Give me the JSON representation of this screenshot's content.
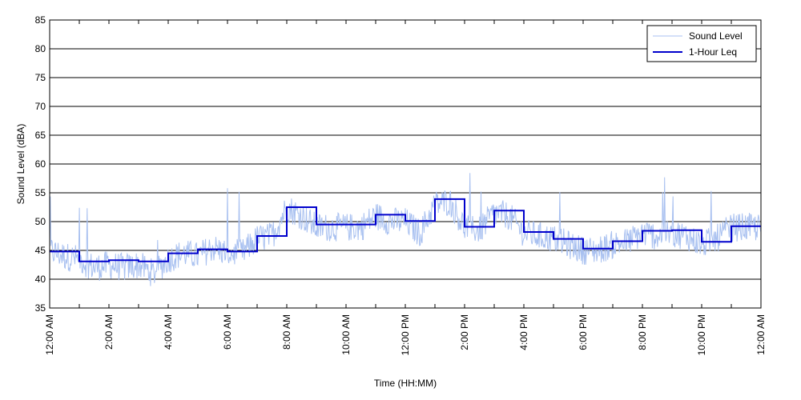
{
  "chart_data": {
    "type": "line",
    "title": "",
    "xlabel": "Time (HH:MM)",
    "ylabel": "Sound Level (dBA)",
    "ylim": [
      35,
      85
    ],
    "yticks": [
      35,
      40,
      45,
      50,
      55,
      60,
      65,
      70,
      75,
      80,
      85
    ],
    "xlim_hours": [
      0,
      24
    ],
    "x_tick_labels": [
      "12:00 AM",
      "2:00 AM",
      "4:00 AM",
      "6:00 AM",
      "8:00 AM",
      "10:00 AM",
      "12:00 PM",
      "2:00 PM",
      "4:00 PM",
      "6:00 PM",
      "8:00 PM",
      "10:00 PM",
      "12:00 AM"
    ],
    "x_tick_hours": [
      0,
      2,
      4,
      6,
      8,
      10,
      12,
      14,
      16,
      18,
      20,
      22,
      24
    ],
    "grid": "horizontal",
    "legend_position": "top-right",
    "series": [
      {
        "name": "Sound Level",
        "style": "thin-light-blue",
        "color": "#a8c0f0",
        "x_hours": [
          0,
          0.5,
          1,
          1.5,
          2,
          2.5,
          3,
          3.5,
          4,
          4.5,
          5,
          5.5,
          6,
          6.5,
          7,
          7.5,
          8,
          8.5,
          9,
          9.5,
          10,
          10.5,
          11,
          11.5,
          12,
          12.5,
          13,
          13.5,
          14,
          14.5,
          15,
          15.5,
          16,
          16.5,
          17,
          17.5,
          18,
          18.5,
          19,
          19.5,
          20,
          20.5,
          21,
          21.5,
          22,
          22.5,
          23,
          23.5,
          24
        ],
        "values": [
          45,
          44,
          43.5,
          42,
          42.5,
          42,
          42.5,
          41,
          43.5,
          44.5,
          44,
          45.5,
          44.5,
          44.5,
          47,
          47.5,
          52.5,
          51,
          49,
          49,
          49,
          49,
          51,
          50,
          50,
          48,
          53,
          53.5,
          49,
          48.5,
          51.5,
          51,
          48,
          47.5,
          47,
          46,
          45,
          45,
          46,
          46.5,
          48,
          47.5,
          48,
          47.5,
          46,
          47,
          49,
          49,
          49
        ]
      },
      {
        "name": "1-Hour Leq",
        "style": "step",
        "color": "#0000cc",
        "hour_start": [
          0,
          1,
          2,
          3,
          4,
          5,
          6,
          7,
          8,
          9,
          10,
          11,
          12,
          13,
          14,
          15,
          16,
          17,
          18,
          19,
          20,
          21,
          22,
          23
        ],
        "values": [
          44.8,
          43.1,
          43.3,
          43.1,
          44.5,
          45.2,
          44.8,
          47.5,
          52.5,
          49.5,
          49.5,
          51.2,
          50.1,
          53.9,
          49.1,
          51.9,
          48.2,
          47.0,
          45.3,
          46.6,
          48.4,
          48.5,
          46.5,
          49.2
        ]
      }
    ]
  }
}
